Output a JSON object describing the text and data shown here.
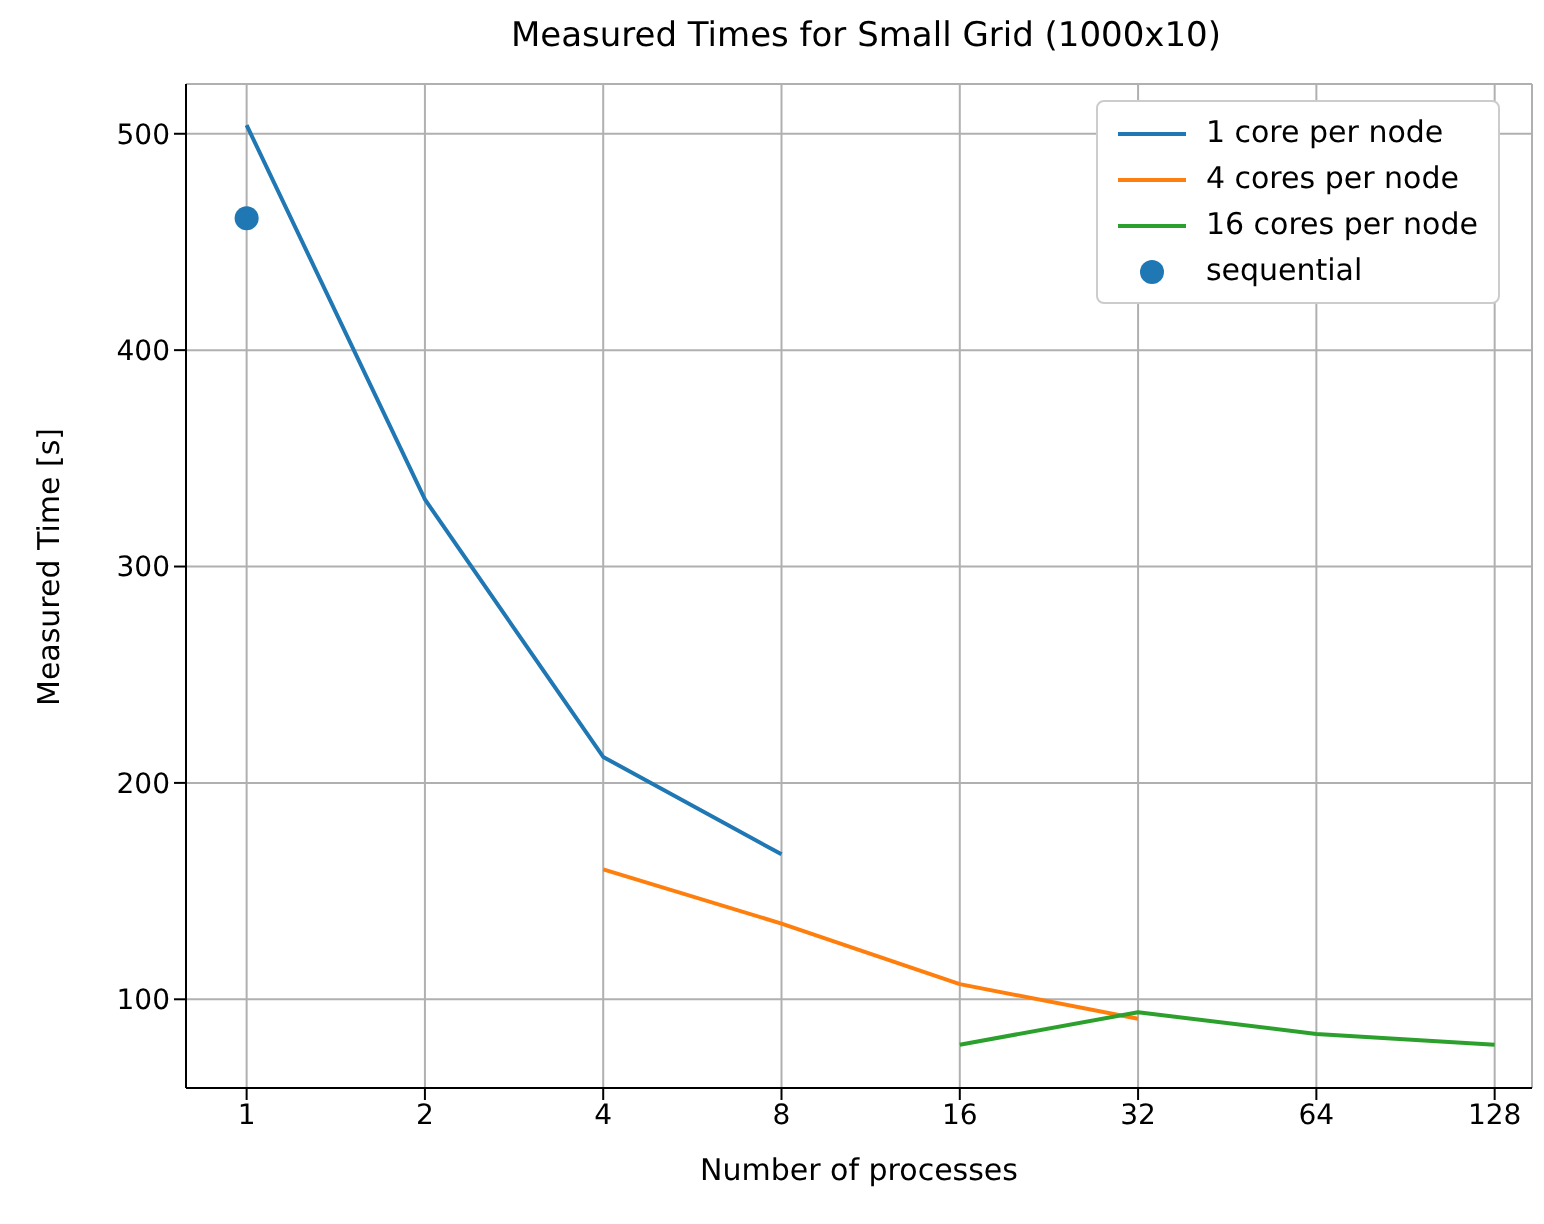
{
  "chart_data": {
    "type": "line",
    "title": "Measured Times for Small Grid (1000x10)",
    "xlabel": "Number of processes",
    "ylabel": "Measured Time [s]",
    "log": "x",
    "series": [
      {
        "name": "1 core per node",
        "color": "#1f77b4",
        "x": [
          1,
          2,
          4,
          8
        ],
        "values": [
          504,
          331,
          212,
          167
        ]
      },
      {
        "name": "4 cores per node",
        "color": "#ff7f0e",
        "x": [
          4,
          8,
          16,
          32
        ],
        "values": [
          160,
          135,
          107,
          91
        ]
      },
      {
        "name": "16 cores per node",
        "color": "#2ca02c",
        "x": [
          16,
          32,
          64,
          128
        ],
        "values": [
          79,
          94,
          84,
          79
        ]
      },
      {
        "name": "sequential",
        "type": "scatter",
        "color": "#1f77b4",
        "x": [
          1
        ],
        "values": [
          461
        ]
      }
    ],
    "xlim": [
      0.79,
      148
    ],
    "xticks": [
      1,
      2,
      4,
      8,
      16,
      32,
      64,
      128
    ],
    "ylim": [
      59,
      523
    ],
    "yticks": [
      100,
      200,
      300,
      400,
      500
    ],
    "grid": true,
    "legend": "top right"
  }
}
